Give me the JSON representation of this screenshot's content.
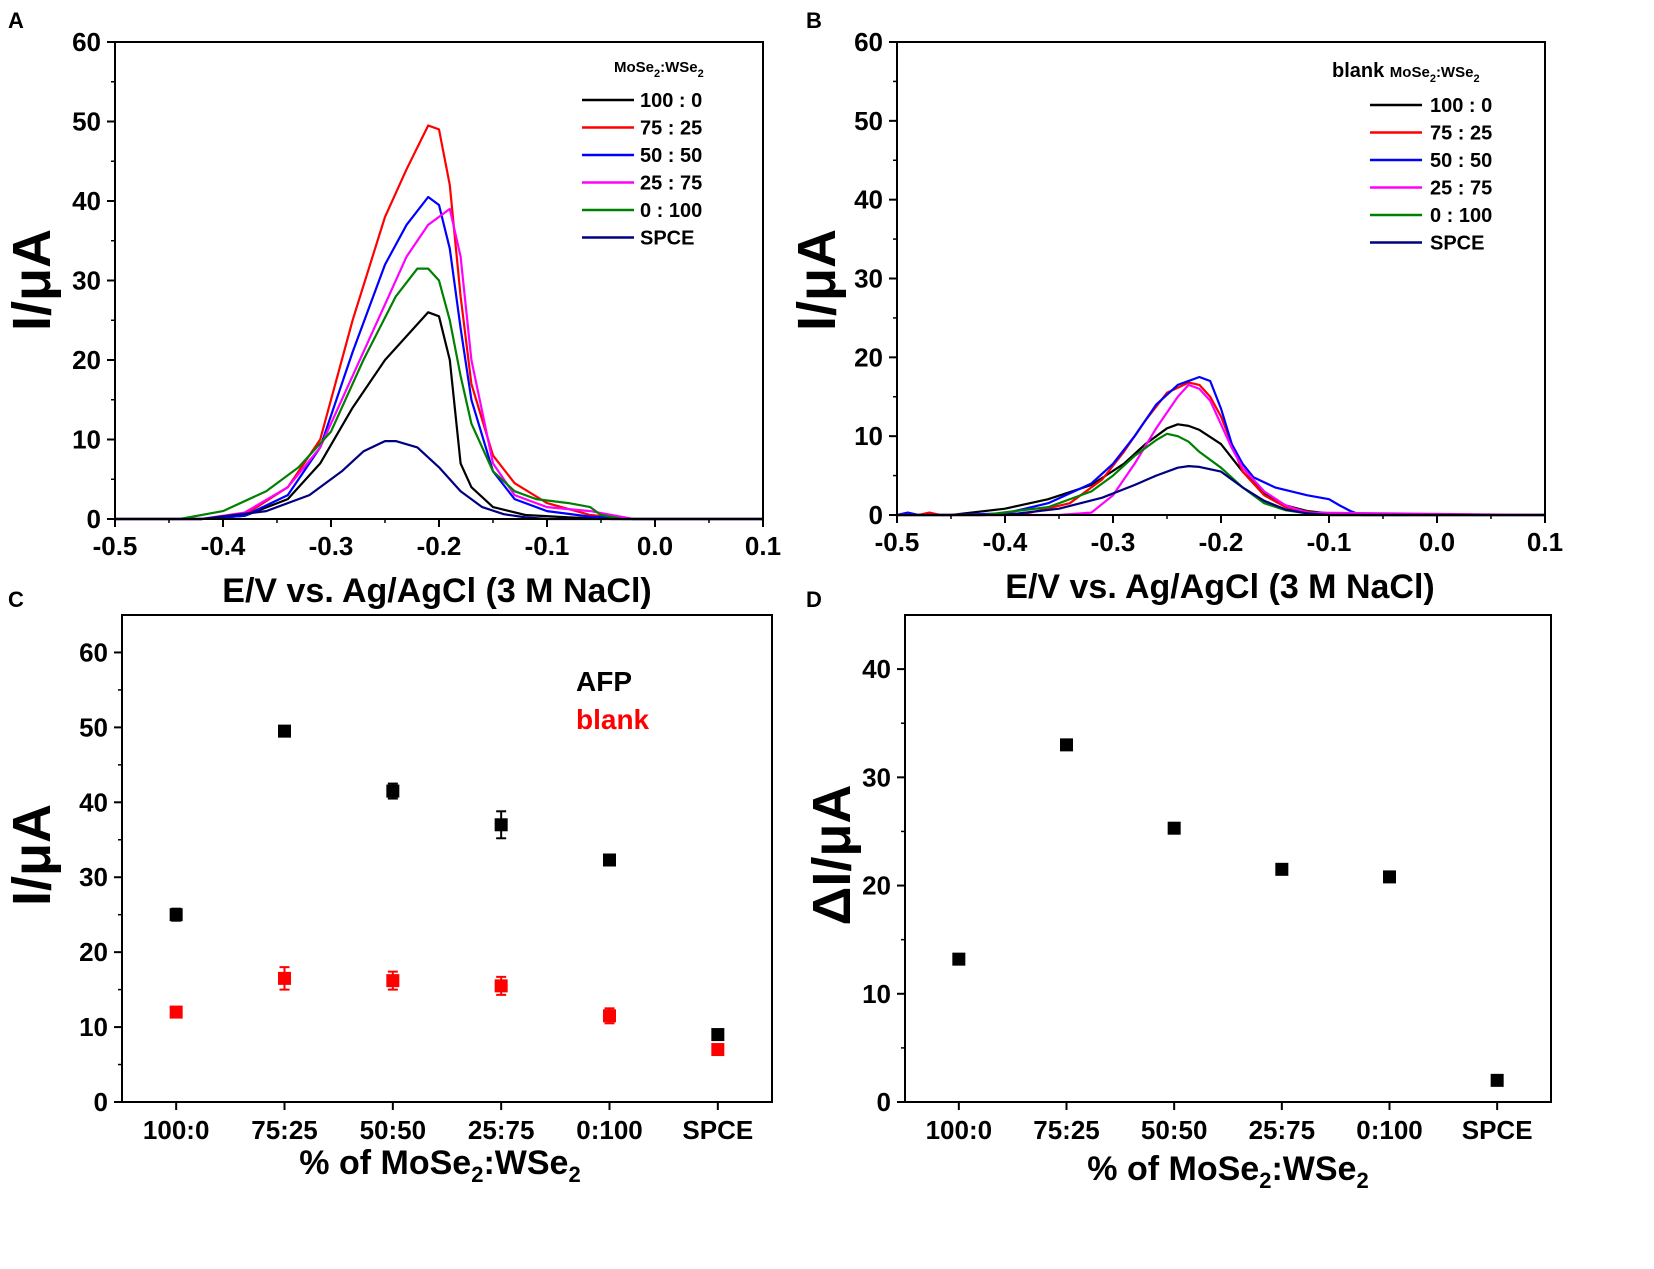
{
  "chart_data": [
    {
      "panel": "A",
      "type": "line",
      "xlabel": "E/V vs. Ag/AgCl (3 M NaCl)",
      "ylabel": "I/μA",
      "xlim": [
        -0.5,
        0.1
      ],
      "ylim": [
        0,
        60
      ],
      "xticks": [
        "-0.5",
        "-0.4",
        "-0.3",
        "-0.2",
        "-0.1",
        "0.0",
        "0.1"
      ],
      "yticks": [
        "0",
        "10",
        "20",
        "30",
        "40",
        "50",
        "60"
      ],
      "legend_title": "MoSe",
      "legend_title_sub1": "2",
      "legend_title_mid": ":WSe",
      "legend_title_sub2": "2",
      "series": [
        {
          "name": "100 : 0",
          "color": "#000000",
          "x": [
            -0.5,
            -0.42,
            -0.38,
            -0.34,
            -0.31,
            -0.28,
            -0.25,
            -0.23,
            -0.21,
            -0.2,
            -0.19,
            -0.18,
            -0.17,
            -0.15,
            -0.12,
            -0.08,
            -0.04,
            0.1
          ],
          "y": [
            0,
            0,
            0.4,
            2.5,
            7,
            14,
            20,
            23,
            26,
            25.5,
            20,
            7,
            4,
            1.5,
            0.5,
            0.2,
            0,
            0
          ]
        },
        {
          "name": "75 : 25",
          "color": "#ff0000",
          "x": [
            -0.5,
            -0.42,
            -0.38,
            -0.34,
            -0.31,
            -0.28,
            -0.25,
            -0.23,
            -0.21,
            -0.2,
            -0.19,
            -0.18,
            -0.17,
            -0.15,
            -0.13,
            -0.1,
            -0.06,
            -0.02,
            0.1
          ],
          "y": [
            0,
            0,
            0.5,
            4,
            10,
            25,
            38,
            44,
            49.5,
            49,
            42,
            28,
            17,
            8,
            4.5,
            2,
            0.5,
            0,
            0
          ]
        },
        {
          "name": "50 : 50",
          "color": "#0000ff",
          "x": [
            -0.5,
            -0.42,
            -0.38,
            -0.34,
            -0.31,
            -0.28,
            -0.25,
            -0.23,
            -0.21,
            -0.2,
            -0.19,
            -0.18,
            -0.17,
            -0.15,
            -0.13,
            -0.1,
            -0.06,
            -0.02,
            0.1
          ],
          "y": [
            0,
            0,
            0.4,
            3,
            9,
            21,
            32,
            37,
            40.5,
            39.5,
            34,
            24,
            15,
            6,
            2.5,
            1,
            0.3,
            0,
            0
          ]
        },
        {
          "name": "25 : 75",
          "color": "#ff00ff",
          "x": [
            -0.5,
            -0.42,
            -0.38,
            -0.34,
            -0.31,
            -0.28,
            -0.25,
            -0.23,
            -0.21,
            -0.2,
            -0.19,
            -0.18,
            -0.17,
            -0.15,
            -0.13,
            -0.1,
            -0.06,
            -0.02,
            0.1
          ],
          "y": [
            0,
            0,
            0.8,
            4,
            9,
            18,
            27,
            33,
            37,
            38,
            39,
            33,
            20,
            7,
            3,
            1.5,
            1,
            0,
            0
          ]
        },
        {
          "name": "0 : 100",
          "color": "#008000",
          "x": [
            -0.5,
            -0.44,
            -0.4,
            -0.36,
            -0.33,
            -0.3,
            -0.27,
            -0.24,
            -0.22,
            -0.21,
            -0.2,
            -0.19,
            -0.18,
            -0.17,
            -0.15,
            -0.13,
            -0.11,
            -0.08,
            -0.06,
            -0.05,
            -0.03,
            0.1
          ],
          "y": [
            0,
            0,
            1,
            3.5,
            6.5,
            11,
            20,
            28,
            31.5,
            31.5,
            30,
            25,
            18,
            12,
            6,
            3.5,
            2.5,
            2,
            1.5,
            0.5,
            0,
            0
          ]
        },
        {
          "name": "SPCE",
          "color": "#000080",
          "x": [
            -0.5,
            -0.42,
            -0.36,
            -0.32,
            -0.29,
            -0.27,
            -0.25,
            -0.24,
            -0.22,
            -0.2,
            -0.18,
            -0.16,
            -0.14,
            -0.12,
            -0.1,
            -0.06,
            0.1
          ],
          "y": [
            0,
            0,
            1,
            3,
            6,
            8.5,
            9.8,
            9.8,
            9,
            6.5,
            3.5,
            1.5,
            0.6,
            0.2,
            0,
            0,
            0
          ]
        }
      ]
    },
    {
      "panel": "B",
      "type": "line",
      "xlabel": "E/V vs. Ag/AgCl (3 M NaCl)",
      "ylabel": "I/μA",
      "xlim": [
        -0.5,
        0.1
      ],
      "ylim": [
        0,
        60
      ],
      "xticks": [
        "-0.5",
        "-0.4",
        "-0.3",
        "-0.2",
        "-0.1",
        "0.0",
        "0.1"
      ],
      "yticks": [
        "0",
        "10",
        "20",
        "30",
        "40",
        "50",
        "60"
      ],
      "legend_prefix": "blank ",
      "legend_title": "MoSe",
      "legend_title_sub1": "2",
      "legend_title_mid": ":WSe",
      "legend_title_sub2": "2",
      "series": [
        {
          "name": "100 : 0",
          "color": "#000000",
          "x": [
            -0.5,
            -0.45,
            -0.4,
            -0.36,
            -0.32,
            -0.29,
            -0.27,
            -0.25,
            -0.24,
            -0.23,
            -0.22,
            -0.2,
            -0.18,
            -0.16,
            -0.14,
            -0.12,
            -0.1,
            -0.07,
            0.1
          ],
          "y": [
            0,
            0,
            0.8,
            2,
            3.8,
            6.5,
            9,
            11,
            11.5,
            11.3,
            10.8,
            9,
            5.5,
            2.8,
            1.2,
            0.5,
            0.2,
            0,
            0
          ]
        },
        {
          "name": "75 : 25",
          "color": "#ff0000",
          "x": [
            -0.5,
            -0.48,
            -0.47,
            -0.46,
            -0.42,
            -0.38,
            -0.34,
            -0.31,
            -0.29,
            -0.27,
            -0.25,
            -0.23,
            -0.22,
            -0.21,
            -0.2,
            -0.19,
            -0.18,
            -0.16,
            -0.14,
            -0.12,
            -0.1,
            0.1
          ],
          "y": [
            0,
            0,
            0.3,
            0,
            0,
            0.2,
            1.5,
            4.5,
            8,
            12,
            15.5,
            16.8,
            16.5,
            15,
            12.5,
            9,
            5.5,
            2.5,
            1,
            0.4,
            0,
            0
          ]
        },
        {
          "name": "50 : 50",
          "color": "#0000ff",
          "x": [
            -0.5,
            -0.49,
            -0.48,
            -0.45,
            -0.4,
            -0.36,
            -0.32,
            -0.3,
            -0.28,
            -0.26,
            -0.24,
            -0.22,
            -0.21,
            -0.2,
            -0.19,
            -0.18,
            -0.17,
            -0.15,
            -0.12,
            -0.1,
            -0.09,
            -0.08,
            -0.07,
            0.1
          ],
          "y": [
            0,
            0.3,
            0,
            0,
            0.2,
            1.5,
            4,
            6.5,
            10,
            14,
            16.5,
            17.5,
            17,
            13.5,
            9,
            6.5,
            4.8,
            3.5,
            2.5,
            2,
            1.2,
            0.5,
            0,
            0
          ]
        },
        {
          "name": "25 : 75",
          "color": "#ff00ff",
          "x": [
            -0.5,
            -0.35,
            -0.32,
            -0.3,
            -0.28,
            -0.26,
            -0.24,
            -0.23,
            -0.22,
            -0.21,
            -0.2,
            -0.19,
            -0.18,
            -0.16,
            -0.14,
            -0.12,
            0.1
          ],
          "y": [
            0,
            0,
            0.3,
            2.5,
            6.5,
            11,
            15,
            16.5,
            16,
            14.5,
            11.5,
            8.5,
            6,
            3,
            1.2,
            0.3,
            0
          ]
        },
        {
          "name": "0 : 100",
          "color": "#008000",
          "x": [
            -0.5,
            -0.42,
            -0.36,
            -0.32,
            -0.3,
            -0.28,
            -0.26,
            -0.25,
            -0.24,
            -0.23,
            -0.22,
            -0.2,
            -0.18,
            -0.16,
            -0.14,
            -0.12,
            -0.1,
            0.1
          ],
          "y": [
            0,
            0,
            1,
            3,
            5,
            7.5,
            9.5,
            10.3,
            10,
            9.3,
            8,
            6,
            3.5,
            1.5,
            0.6,
            0.2,
            0,
            0
          ]
        },
        {
          "name": "SPCE",
          "color": "#000080",
          "x": [
            -0.5,
            -0.4,
            -0.35,
            -0.31,
            -0.28,
            -0.26,
            -0.24,
            -0.23,
            -0.22,
            -0.2,
            -0.18,
            -0.16,
            -0.14,
            -0.12,
            -0.1,
            0.1
          ],
          "y": [
            0,
            0,
            0.8,
            2.2,
            3.8,
            5,
            6,
            6.2,
            6.1,
            5.5,
            3.5,
            1.8,
            0.7,
            0.2,
            0,
            0
          ]
        }
      ]
    },
    {
      "panel": "C",
      "type": "scatter",
      "xlabel_pre": "% of MoSe",
      "xlabel_sub1": "2",
      "xlabel_mid": ":WSe",
      "xlabel_sub2": "2",
      "ylabel": "I/μA",
      "ylim": [
        0,
        65
      ],
      "categories": [
        "100:0",
        "75:25",
        "50:50",
        "25:75",
        "0:100",
        "SPCE"
      ],
      "yticks": [
        "0",
        "10",
        "20",
        "30",
        "40",
        "50",
        "60"
      ],
      "series": [
        {
          "name": "AFP",
          "color": "#000000",
          "values": [
            25,
            49.5,
            41.5,
            37,
            32.3,
            9
          ],
          "errors": [
            0.8,
            0.6,
            1.0,
            1.8,
            0.7,
            0.5
          ]
        },
        {
          "name": "blank",
          "color": "#ff0000",
          "values": [
            12,
            16.5,
            16.2,
            15.5,
            11.5,
            7
          ],
          "errors": [
            0.6,
            1.5,
            1.2,
            1.2,
            1.0,
            0.6
          ]
        }
      ]
    },
    {
      "panel": "D",
      "type": "scatter",
      "xlabel_pre": "% of MoSe",
      "xlabel_sub1": "2",
      "xlabel_mid": ":WSe",
      "xlabel_sub2": "2",
      "ylabel": "ΔI/μA",
      "ylim": [
        0,
        45
      ],
      "categories": [
        "100:0",
        "75:25",
        "50:50",
        "25:75",
        "0:100",
        "SPCE"
      ],
      "yticks": [
        "0",
        "10",
        "20",
        "30",
        "40"
      ],
      "series": [
        {
          "name": "ΔI",
          "color": "#000000",
          "values": [
            13.2,
            33,
            25.3,
            21.5,
            20.8,
            2
          ]
        }
      ]
    }
  ]
}
